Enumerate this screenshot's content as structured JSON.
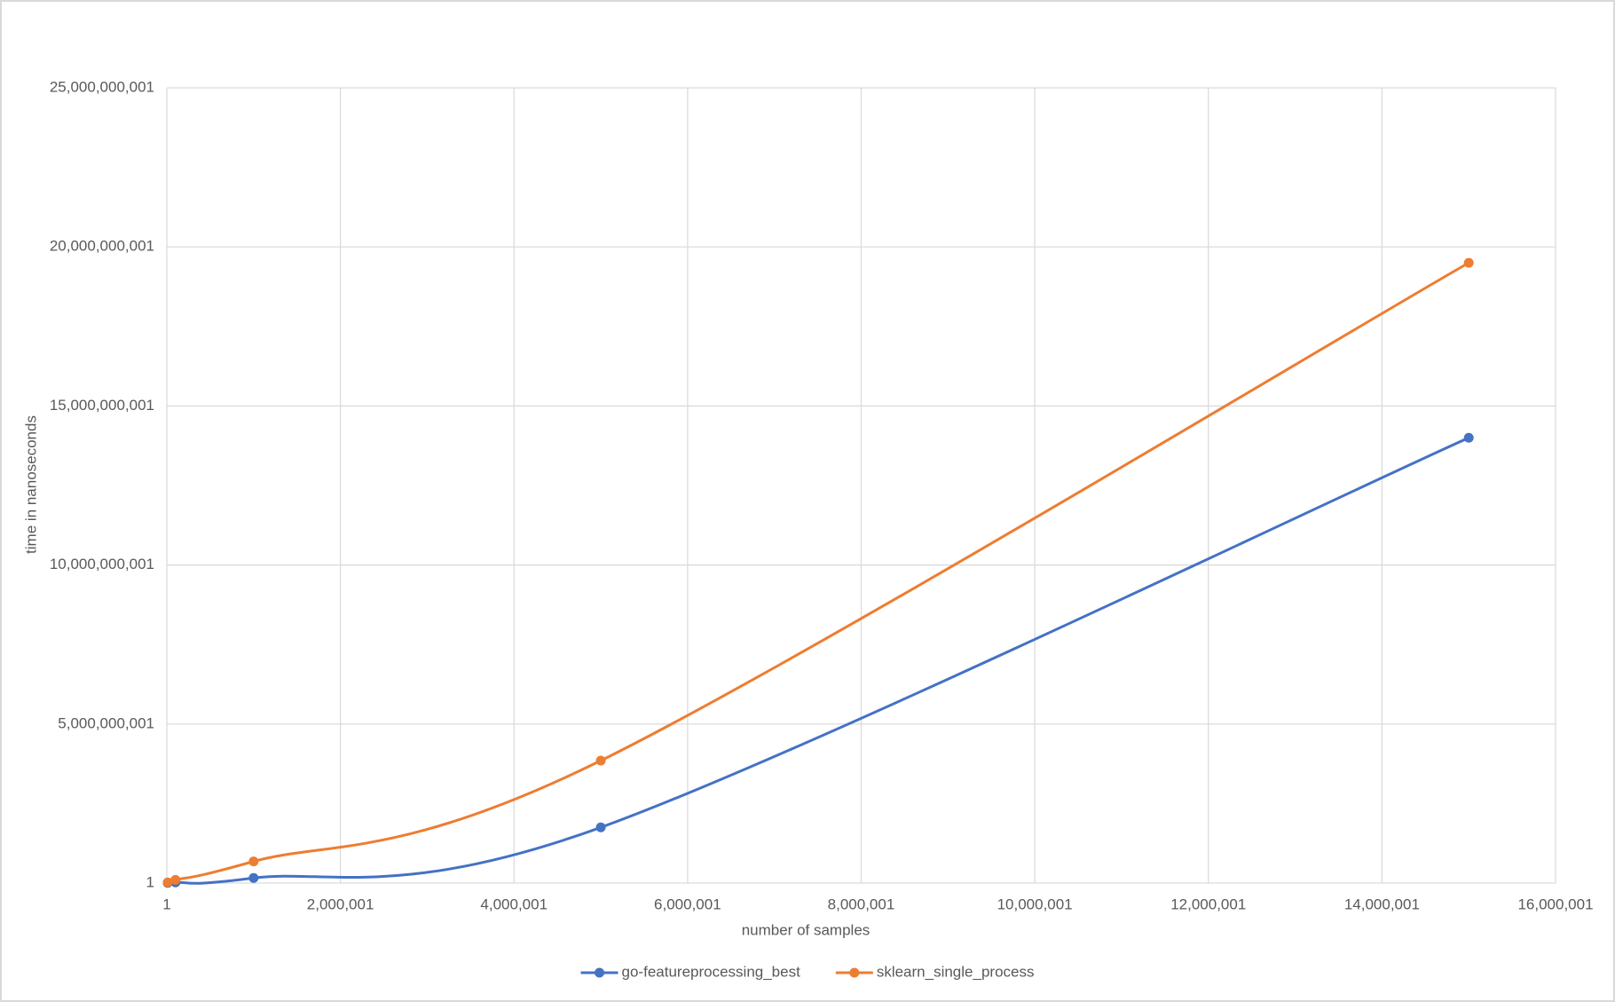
{
  "chart_data": {
    "type": "line",
    "smooth": true,
    "markers": true,
    "x_label": "number of samples",
    "y_label": "time in nanoseconds",
    "x": [
      10000,
      100000,
      1000000,
      5000000,
      15000000
    ],
    "series": [
      {
        "name": "go-featureprocessing_best",
        "color": "#4472c4",
        "values": [
          5000000,
          20000000,
          160000000,
          1750000000,
          14000000000
        ]
      },
      {
        "name": "sklearn_single_process",
        "color": "#ed7d31",
        "values": [
          20000000,
          100000000,
          680000000,
          3850000000,
          19500000000
        ]
      }
    ],
    "xlim": [
      1,
      16000001
    ],
    "xticks": [
      1,
      {
        "value": 2000001,
        "label": "2,000,001"
      },
      {
        "value": 4000001,
        "label": "4,000,001"
      },
      {
        "value": 6000001,
        "label": "6,000,001"
      },
      {
        "value": 8000001,
        "label": "8,000,001"
      },
      {
        "value": 10000001,
        "label": "10,000,001"
      },
      {
        "value": 12000001,
        "label": "12,000,001"
      },
      {
        "value": 14000001,
        "label": "14,000,001"
      },
      {
        "value": 16000001,
        "label": "16,000,001"
      }
    ],
    "ylim": [
      1,
      25000000001
    ],
    "yticks": [
      1,
      {
        "value": 5000000001,
        "label": "5,000,000,001"
      },
      {
        "value": 10000000001,
        "label": "10,000,000,001"
      },
      {
        "value": 15000000001,
        "label": "15,000,000,001"
      },
      {
        "value": 20000000001,
        "label": "20,000,000,001"
      },
      {
        "value": 25000000001,
        "label": "25,000,000,001"
      }
    ],
    "grid": true,
    "legend": "bottom"
  }
}
